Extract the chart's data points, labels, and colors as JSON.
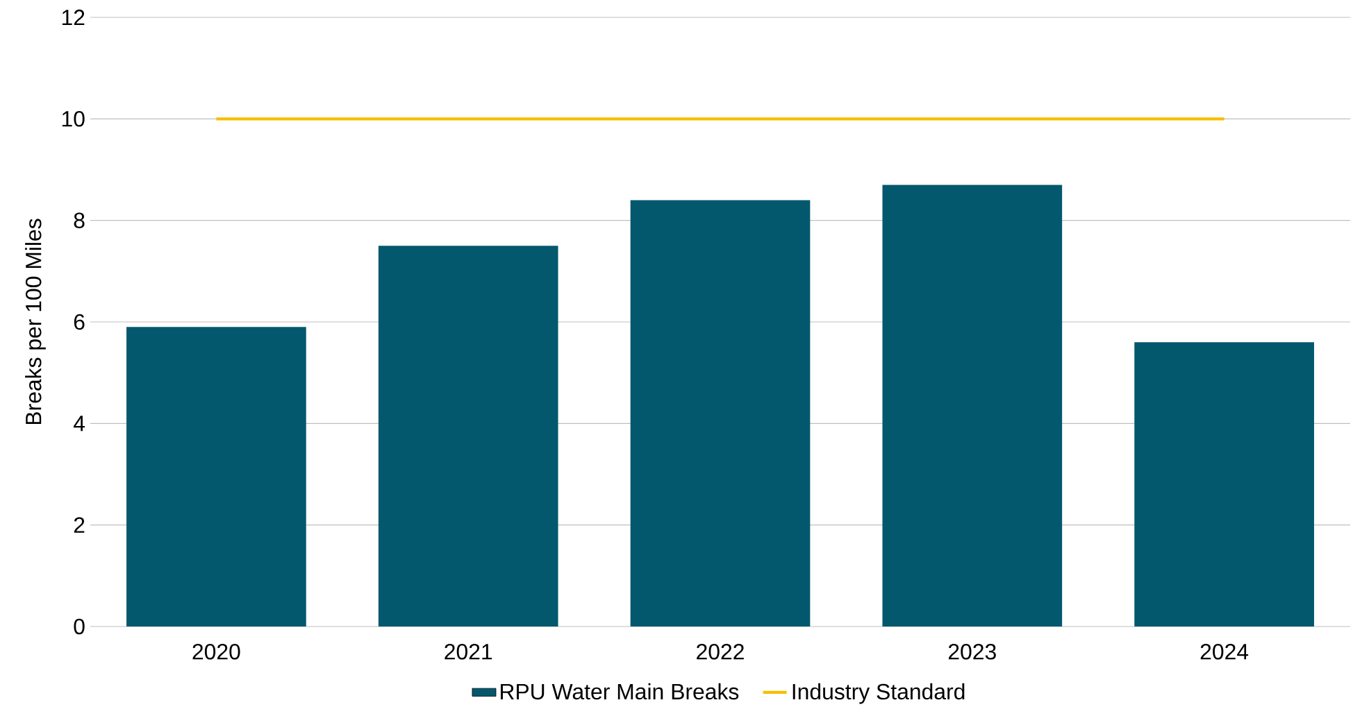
{
  "chart_data": {
    "type": "bar",
    "ylabel": "Breaks per 100 Miles",
    "categories": [
      "2020",
      "2021",
      "2022",
      "2023",
      "2024"
    ],
    "series": [
      {
        "name": "RPU Water Main Breaks",
        "color": "#03586d",
        "values": [
          5.9,
          7.5,
          8.4,
          8.7,
          5.6
        ]
      },
      {
        "name": "Industry Standard",
        "type": "line",
        "color": "#f5bf00",
        "values": [
          10,
          10,
          10,
          10,
          10
        ]
      }
    ],
    "ylim": [
      0,
      12
    ],
    "yticks": [
      0,
      2,
      4,
      6,
      8,
      10,
      12
    ],
    "grid": "y",
    "legend": "bottom"
  }
}
